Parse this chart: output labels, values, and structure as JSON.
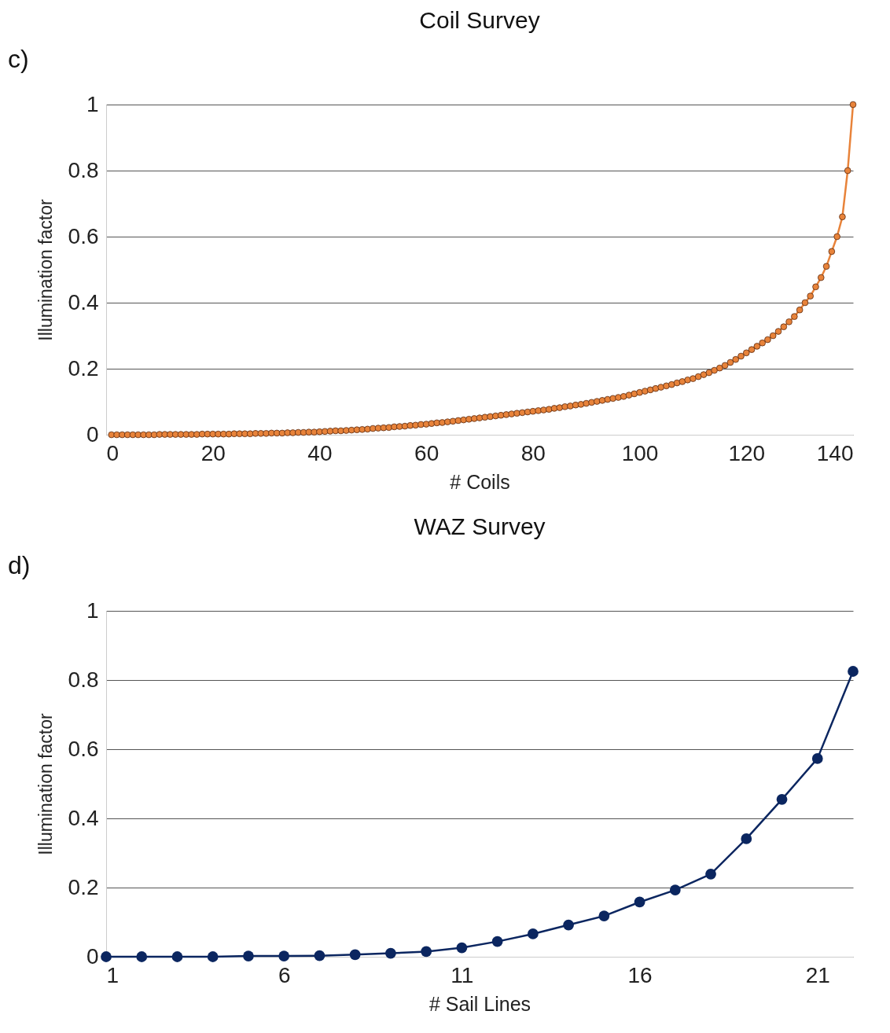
{
  "chart_data": [
    {
      "type": "line",
      "title": "Coil Survey",
      "xlabel": "# Coils",
      "ylabel": "Illumination factor",
      "annotations": [
        "c)"
      ],
      "x": [
        1,
        2,
        3,
        4,
        5,
        6,
        7,
        8,
        9,
        10,
        11,
        12,
        13,
        14,
        15,
        16,
        17,
        18,
        19,
        20,
        21,
        22,
        23,
        24,
        25,
        26,
        27,
        28,
        29,
        30,
        31,
        32,
        33,
        34,
        35,
        36,
        37,
        38,
        39,
        40,
        41,
        42,
        43,
        44,
        45,
        46,
        47,
        48,
        49,
        50,
        51,
        52,
        53,
        54,
        55,
        56,
        57,
        58,
        59,
        60,
        61,
        62,
        63,
        64,
        65,
        66,
        67,
        68,
        69,
        70,
        71,
        72,
        73,
        74,
        75,
        76,
        77,
        78,
        79,
        80,
        81,
        82,
        83,
        84,
        85,
        86,
        87,
        88,
        89,
        90,
        91,
        92,
        93,
        94,
        95,
        96,
        97,
        98,
        99,
        100,
        101,
        102,
        103,
        104,
        105,
        106,
        107,
        108,
        109,
        110,
        111,
        112,
        113,
        114,
        115,
        116,
        117,
        118,
        119,
        120,
        121,
        122,
        123,
        124,
        125,
        126,
        127,
        128,
        129,
        130,
        131,
        132,
        133,
        134,
        135,
        136,
        137,
        138,
        139,
        140
      ],
      "series": [
        {
          "color": "#e8833a",
          "values": [
            0,
            0,
            0,
            0,
            0,
            0,
            0,
            0,
            0,
            0.001,
            0.001,
            0.001,
            0.001,
            0.001,
            0.001,
            0.001,
            0.001,
            0.002,
            0.002,
            0.002,
            0.002,
            0.002,
            0.002,
            0.003,
            0.003,
            0.003,
            0.003,
            0.004,
            0.004,
            0.004,
            0.005,
            0.005,
            0.005,
            0.006,
            0.006,
            0.007,
            0.007,
            0.008,
            0.008,
            0.009,
            0.01,
            0.011,
            0.012,
            0.012,
            0.013,
            0.014,
            0.015,
            0.016,
            0.017,
            0.019,
            0.02,
            0.021,
            0.022,
            0.024,
            0.025,
            0.026,
            0.028,
            0.029,
            0.031,
            0.032,
            0.034,
            0.036,
            0.037,
            0.039,
            0.041,
            0.043,
            0.045,
            0.047,
            0.049,
            0.051,
            0.053,
            0.055,
            0.057,
            0.059,
            0.061,
            0.063,
            0.065,
            0.067,
            0.069,
            0.071,
            0.073,
            0.075,
            0.077,
            0.08,
            0.082,
            0.085,
            0.087,
            0.09,
            0.092,
            0.095,
            0.098,
            0.101,
            0.104,
            0.107,
            0.11,
            0.113,
            0.116,
            0.12,
            0.124,
            0.128,
            0.132,
            0.136,
            0.14,
            0.144,
            0.148,
            0.152,
            0.157,
            0.161,
            0.166,
            0.17,
            0.176,
            0.182,
            0.188,
            0.195,
            0.202,
            0.21,
            0.219,
            0.228,
            0.238,
            0.248,
            0.258,
            0.268,
            0.278,
            0.288,
            0.3,
            0.313,
            0.327,
            0.342,
            0.358,
            0.378,
            0.4,
            0.42,
            0.448,
            0.476,
            0.51,
            0.555,
            0.6,
            0.66,
            0.8,
            1
          ]
        }
      ],
      "xlim": [
        0,
        140
      ],
      "xticks": [
        0,
        20,
        40,
        60,
        80,
        100,
        120,
        140
      ],
      "ylim": [
        0,
        1
      ],
      "yticks": [
        0,
        0.2,
        0.4,
        0.6,
        0.8,
        1
      ],
      "grid": "y",
      "marker": "circle",
      "line_style": "solid"
    },
    {
      "type": "line",
      "title": "WAZ Survey",
      "xlabel": "# Sail Lines",
      "ylabel": "Illumination factor",
      "annotations": [
        "d)"
      ],
      "x": [
        1,
        2,
        3,
        4,
        5,
        6,
        7,
        8,
        9,
        10,
        11,
        12,
        13,
        14,
        15,
        16,
        17,
        18,
        19,
        20,
        21,
        22
      ],
      "series": [
        {
          "color": "#0b2660",
          "values": [
            0,
            0,
            0,
            0,
            0.002,
            0.002,
            0.003,
            0.006,
            0.01,
            0.015,
            0.026,
            0.044,
            0.066,
            0.092,
            0.118,
            0.158,
            0.193,
            0.239,
            0.341,
            0.455,
            0.573,
            0.825
          ]
        }
      ],
      "xlim": [
        1,
        22
      ],
      "xticks": [
        1,
        6,
        11,
        16,
        21
      ],
      "ylim": [
        0,
        1
      ],
      "yticks": [
        0,
        0.2,
        0.4,
        0.6,
        0.8,
        1
      ],
      "grid": "y",
      "marker": "circle",
      "line_style": "solid"
    }
  ]
}
